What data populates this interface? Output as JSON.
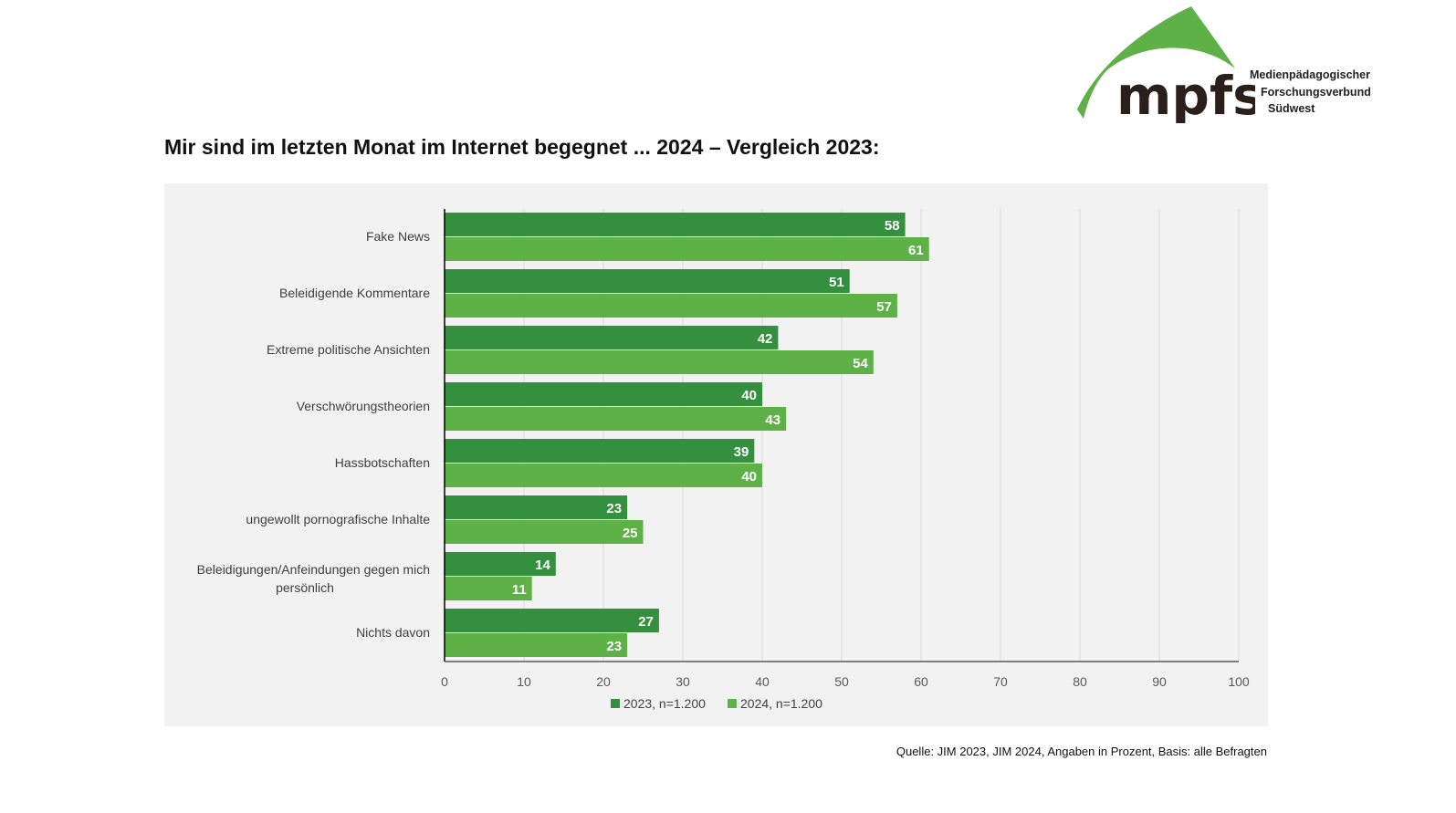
{
  "logo": {
    "wordmark": "mpfs",
    "lines": [
      "Medienpädagogischer",
      "Forschungsverbund",
      "Südwest"
    ],
    "brand_color": "#5db146"
  },
  "title": "Mir sind im letzten Monat im Internet begegnet ... 2024 – Vergleich 2023:",
  "source": "Quelle: JIM 2023, JIM 2024, Angaben in Prozent, Basis: alle Befragten",
  "chart_data": {
    "type": "bar",
    "orientation": "horizontal",
    "categories": [
      "Fake News",
      "Beleidigende Kommentare",
      "Extreme politische Ansichten",
      "Verschwörungstheorien",
      "Hassbotschaften",
      "ungewollt pornografische Inhalte",
      "Beleidigungen/Anfeindungen gegen mich persönlich",
      "Nichts davon"
    ],
    "series": [
      {
        "name": "2023, n=1.200",
        "color": "#348f3e",
        "values": [
          58,
          51,
          42,
          40,
          39,
          23,
          14,
          27
        ]
      },
      {
        "name": "2024, n=1.200",
        "color": "#5db146",
        "values": [
          61,
          57,
          54,
          43,
          40,
          25,
          11,
          23
        ]
      }
    ],
    "xlim": [
      0,
      100
    ],
    "xticks": [
      0,
      10,
      20,
      30,
      40,
      50,
      60,
      70,
      80,
      90,
      100
    ],
    "grid": true,
    "legend": "bottom",
    "data_labels": true
  }
}
